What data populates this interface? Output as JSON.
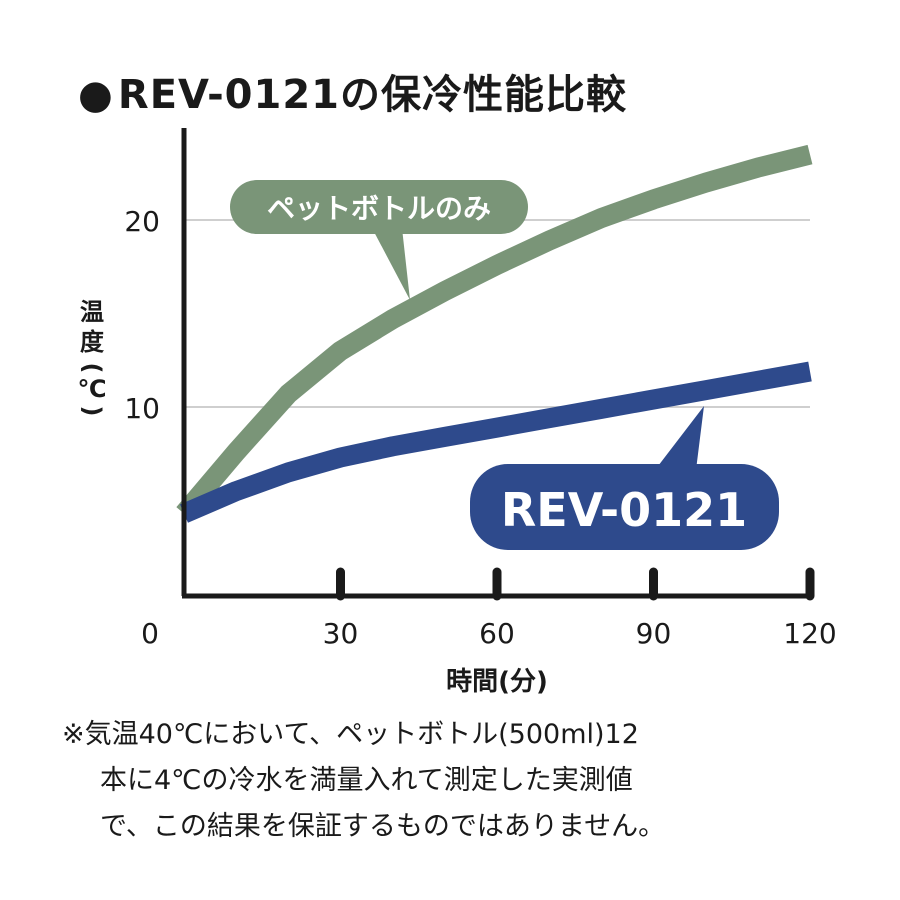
{
  "title": {
    "bullet": "●",
    "text": "REV-0121の保冷性能比較"
  },
  "chart_data": {
    "type": "line",
    "x": [
      0,
      10,
      20,
      30,
      40,
      50,
      60,
      70,
      80,
      90,
      100,
      110,
      120
    ],
    "series": [
      {
        "name": "ペットボトルのみ",
        "color": "#7a9578",
        "values": [
          4.3,
          7.6,
          10.7,
          13.0,
          14.7,
          16.2,
          17.6,
          18.9,
          20.1,
          21.1,
          22.0,
          22.8,
          23.5
        ]
      },
      {
        "name": "REV-0121",
        "color": "#2e4a8c",
        "values": [
          4.3,
          5.5,
          6.5,
          7.3,
          7.9,
          8.4,
          8.9,
          9.4,
          9.9,
          10.4,
          10.9,
          11.4,
          11.9
        ]
      }
    ],
    "xticks": [
      30,
      60,
      90,
      120
    ],
    "xtick_labels": [
      "30",
      "60",
      "90",
      "120"
    ],
    "yticks": [
      10,
      20
    ],
    "ytick_labels": [
      "10",
      "20"
    ],
    "origin_label": "0",
    "xlim": [
      0,
      120
    ],
    "ylim": [
      0,
      25
    ],
    "xlabel": "時間(分)",
    "ylabel_lines": [
      "温",
      "度",
      "(",
      "℃",
      ")"
    ],
    "grid": "horizontal",
    "legend": "callouts"
  },
  "note": {
    "lines": [
      "※気温40℃において、ペットボトル(500ml)12",
      "本に4℃の冷水を満量入れて測定した実測値",
      "で、この結果を保証するものではありません。"
    ]
  }
}
